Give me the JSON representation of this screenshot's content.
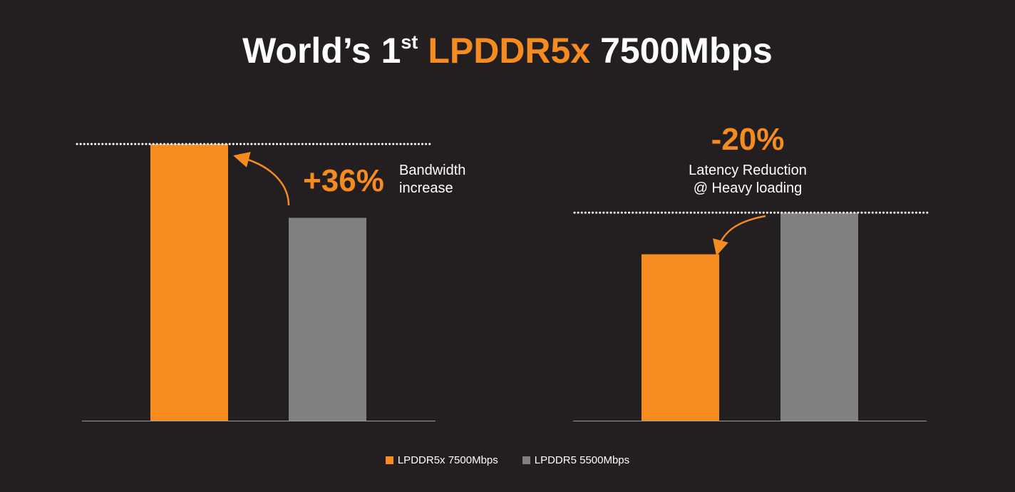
{
  "title": {
    "prefix": "World’s 1",
    "superscript": "st",
    "highlight": "LPDDR5x",
    "suffix": "7500Mbps"
  },
  "colors": {
    "background": "#231f20",
    "accent": "#f68b1f",
    "gray": "#808080",
    "text": "#ffffff"
  },
  "chart_data": [
    {
      "type": "bar",
      "categories": [
        "LPDDR5x 7500Mbps",
        "LPDDR5 5500Mbps"
      ],
      "values": [
        7500,
        5500
      ],
      "ylim": [
        0,
        7500
      ],
      "grid": false,
      "reference_line": "dotted line at LPDDR5x level",
      "annotation": {
        "value": "+36%",
        "text_lines": [
          "Bandwidth",
          "increase"
        ]
      }
    },
    {
      "type": "bar",
      "categories": [
        "LPDDR5x 7500Mbps",
        "LPDDR5 5500Mbps"
      ],
      "values": [
        80,
        100
      ],
      "ylim": [
        0,
        133
      ],
      "grid": false,
      "reference_line": "dotted line at LPDDR5 level",
      "annotation": {
        "value": "-20%",
        "text_lines": [
          "Latency Reduction",
          "@ Heavy loading"
        ]
      }
    }
  ],
  "legend": {
    "placement": "bottom-center",
    "items": [
      {
        "label": "LPDDR5x 7500Mbps",
        "color": "#f68b1f"
      },
      {
        "label": "LPDDR5 5500Mbps",
        "color": "#808080"
      }
    ]
  }
}
